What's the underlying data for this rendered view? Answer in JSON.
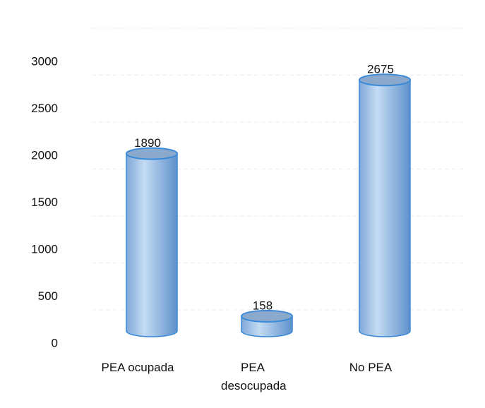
{
  "chart_data": {
    "type": "bar",
    "categories": [
      "PEA ocupada",
      "PEA desocupada",
      "No PEA"
    ],
    "values": [
      1890,
      158,
      2675
    ],
    "color": "#8fb6e2",
    "ylim": [
      0,
      3000
    ],
    "yticks": [
      0,
      500,
      1000,
      1500,
      2000,
      2500,
      3000
    ],
    "grid": true
  }
}
